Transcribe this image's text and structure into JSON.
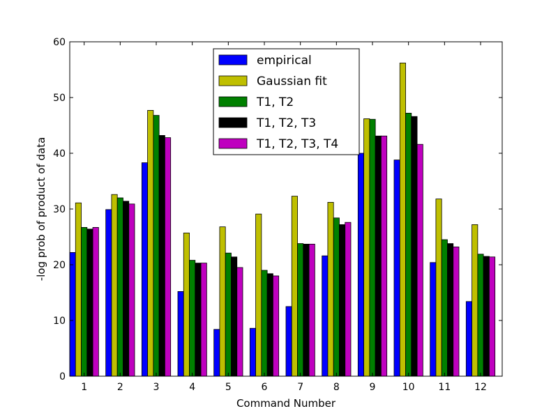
{
  "chart_data": {
    "type": "bar",
    "xlabel": "Command Number",
    "ylabel": "-log prob of product of data",
    "ylim": [
      0,
      60
    ],
    "yticks": [
      0,
      10,
      20,
      30,
      40,
      50,
      60
    ],
    "categories": [
      "1",
      "2",
      "3",
      "4",
      "5",
      "6",
      "7",
      "8",
      "9",
      "10",
      "11",
      "12"
    ],
    "legend_position": "top-center",
    "grid": false,
    "series": [
      {
        "name": "empirical",
        "color": "#0000ff",
        "values": [
          22.2,
          29.9,
          38.3,
          15.2,
          8.4,
          8.6,
          12.5,
          21.6,
          40.0,
          38.8,
          20.4,
          13.4
        ]
      },
      {
        "name": "Gaussian fit",
        "color": "#bfbf00",
        "values": [
          31.1,
          32.6,
          47.7,
          25.7,
          26.8,
          29.1,
          32.3,
          31.2,
          46.2,
          56.2,
          31.8,
          27.2
        ]
      },
      {
        "name": "T1, T2",
        "color": "#008000",
        "values": [
          26.7,
          32.0,
          46.8,
          20.8,
          22.1,
          19.0,
          23.8,
          28.4,
          46.1,
          47.2,
          24.5,
          21.9
        ]
      },
      {
        "name": "T1, T2, T3",
        "color": "#000000",
        "values": [
          26.4,
          31.4,
          43.2,
          20.3,
          21.4,
          18.4,
          23.7,
          27.2,
          43.1,
          46.6,
          23.8,
          21.5
        ]
      },
      {
        "name": "T1, T2, T3, T4",
        "color": "#bf00bf",
        "values": [
          26.7,
          30.9,
          42.8,
          20.3,
          19.5,
          18.0,
          23.7,
          27.6,
          43.1,
          41.6,
          23.2,
          21.4
        ]
      }
    ]
  }
}
